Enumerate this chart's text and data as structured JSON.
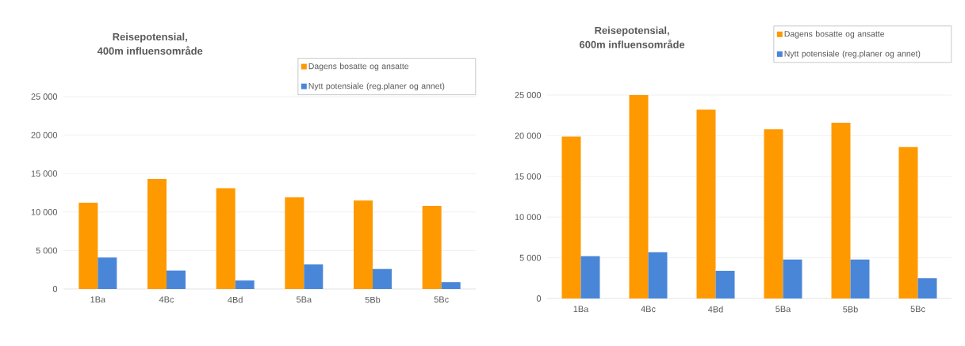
{
  "chart_data": [
    {
      "type": "bar",
      "title": "Reisepotensial,\n400m influensområde",
      "categories": [
        "1Ba",
        "4Bc",
        "4Bd",
        "5Ba",
        "5Bb",
        "5Bc"
      ],
      "series": [
        {
          "name": "Dagens bosatte og ansatte",
          "color": "#ff9900",
          "values": [
            11200,
            14300,
            13100,
            11900,
            11500,
            10800
          ]
        },
        {
          "name": "Nytt potensiale (reg.planer og annet)",
          "color": "#4a86d8",
          "values": [
            4100,
            2400,
            1100,
            3200,
            2600,
            900
          ]
        }
      ],
      "ylim": [
        0,
        25000
      ],
      "yticks": [
        0,
        {
          "value": 5000,
          "label": "5 000"
        },
        {
          "value": 10000,
          "label": "10 000"
        },
        {
          "value": 15000,
          "label": "15 000"
        },
        {
          "value": 20000,
          "label": "20 000"
        },
        {
          "value": 25000,
          "label": "25 000"
        }
      ],
      "grid": "y",
      "legend": "top right"
    },
    {
      "type": "bar",
      "title": "Reisepotensial,\n600m influensområde",
      "categories": [
        "1Ba",
        "4Bc",
        "4Bd",
        "5Ba",
        "5Bb",
        "5Bc"
      ],
      "series": [
        {
          "name": "Dagens bosatte og ansatte",
          "color": "#ff9900",
          "values": [
            19900,
            25000,
            23200,
            20800,
            21600,
            18600
          ]
        },
        {
          "name": "Nytt potensiale (reg.planer og annet)",
          "color": "#4a86d8",
          "values": [
            5200,
            5700,
            3400,
            4800,
            4800,
            2500
          ]
        }
      ],
      "ylim": [
        0,
        25000
      ],
      "yticks": [
        0,
        {
          "value": 5000,
          "label": "5 000"
        },
        {
          "value": 10000,
          "label": "10 000"
        },
        {
          "value": 15000,
          "label": "15 000"
        },
        {
          "value": 20000,
          "label": "20 000"
        },
        {
          "value": 25000,
          "label": "25 000"
        }
      ],
      "grid": "y",
      "legend": "top right"
    }
  ]
}
